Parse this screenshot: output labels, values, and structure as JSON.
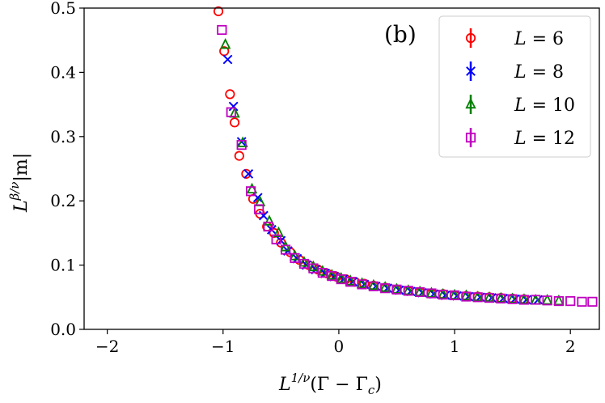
{
  "chart_data": {
    "type": "scatter",
    "panel_label": "(b)",
    "xlabel": "L^{1/ν}(Γ − Γ_c)",
    "ylabel": "L^{β/ν}|m|",
    "xlim": [
      -2.2,
      2.25
    ],
    "ylim": [
      0.0,
      0.5
    ],
    "xticks": [
      -2,
      -1,
      0,
      1,
      2
    ],
    "xtick_labels": [
      "−2",
      "−1",
      "0",
      "1",
      "2"
    ],
    "yticks": [
      0.0,
      0.1,
      0.2,
      0.3,
      0.4,
      0.5
    ],
    "ytick_labels": [
      "0.0",
      "0.1",
      "0.2",
      "0.3",
      "0.4",
      "0.5"
    ],
    "legend_position": "top-right",
    "series": [
      {
        "name": "L = 6",
        "L_value": "6",
        "marker": "circle",
        "color": "#ff0000",
        "x": [
          -1.04,
          -0.99,
          -0.94,
          -0.9,
          -0.86,
          -0.8,
          -0.74,
          -0.68,
          -0.62,
          -0.56,
          -0.5,
          -0.42,
          -0.34,
          -0.26,
          -0.18,
          -0.1,
          -0.02,
          0.06,
          0.14,
          0.22,
          0.3,
          0.4,
          0.5,
          0.6,
          0.7,
          0.8,
          0.9,
          1.0,
          1.1,
          1.2,
          1.3,
          1.4,
          1.5,
          1.6
        ],
        "y": [
          0.495,
          0.433,
          0.366,
          0.322,
          0.27,
          0.242,
          0.203,
          0.18,
          0.16,
          0.15,
          0.135,
          0.12,
          0.108,
          0.1,
          0.093,
          0.087,
          0.082,
          0.078,
          0.074,
          0.071,
          0.068,
          0.065,
          0.062,
          0.06,
          0.058,
          0.056,
          0.055,
          0.053,
          0.052,
          0.051,
          0.05,
          0.049,
          0.048,
          0.047
        ]
      },
      {
        "name": "L = 8",
        "L_value": "8",
        "marker": "x",
        "color": "#0000ff",
        "x": [
          -0.96,
          -0.91,
          -0.84,
          -0.78,
          -0.7,
          -0.65,
          -0.58,
          -0.5,
          -0.44,
          -0.36,
          -0.28,
          -0.2,
          -0.12,
          -0.04,
          0.04,
          0.12,
          0.22,
          0.32,
          0.42,
          0.52,
          0.62,
          0.72,
          0.82,
          0.92,
          1.02,
          1.12,
          1.22,
          1.32,
          1.42,
          1.52,
          1.62,
          1.72
        ],
        "y": [
          0.42,
          0.347,
          0.292,
          0.242,
          0.205,
          0.177,
          0.155,
          0.138,
          0.122,
          0.11,
          0.1,
          0.093,
          0.087,
          0.082,
          0.078,
          0.074,
          0.07,
          0.067,
          0.064,
          0.061,
          0.059,
          0.057,
          0.055,
          0.053,
          0.052,
          0.051,
          0.05,
          0.049,
          0.048,
          0.047,
          0.046,
          0.046
        ]
      },
      {
        "name": "L = 10",
        "L_value": "10",
        "marker": "triangle",
        "color": "#008000",
        "x": [
          -0.98,
          -0.9,
          -0.83,
          -0.75,
          -0.68,
          -0.6,
          -0.52,
          -0.46,
          -0.38,
          -0.3,
          -0.22,
          -0.14,
          -0.06,
          0.02,
          0.1,
          0.2,
          0.3,
          0.4,
          0.5,
          0.6,
          0.7,
          0.8,
          0.9,
          1.0,
          1.1,
          1.2,
          1.3,
          1.4,
          1.5,
          1.6,
          1.7,
          1.8,
          1.9
        ],
        "y": [
          0.443,
          0.336,
          0.29,
          0.218,
          0.198,
          0.168,
          0.15,
          0.128,
          0.114,
          0.104,
          0.097,
          0.09,
          0.084,
          0.079,
          0.075,
          0.071,
          0.068,
          0.065,
          0.062,
          0.06,
          0.058,
          0.056,
          0.054,
          0.053,
          0.052,
          0.05,
          0.049,
          0.048,
          0.047,
          0.046,
          0.045,
          0.045,
          0.044
        ]
      },
      {
        "name": "L = 12",
        "L_value": "12",
        "marker": "square",
        "color": "#bf00bf",
        "x": [
          -1.01,
          -0.93,
          -0.84,
          -0.76,
          -0.69,
          -0.61,
          -0.54,
          -0.46,
          -0.38,
          -0.3,
          -0.22,
          -0.14,
          -0.06,
          0.02,
          0.1,
          0.2,
          0.3,
          0.4,
          0.5,
          0.6,
          0.7,
          0.8,
          0.9,
          1.0,
          1.1,
          1.2,
          1.3,
          1.4,
          1.5,
          1.6,
          1.7,
          1.8,
          1.9,
          2.0,
          2.1,
          2.19
        ],
        "y": [
          0.466,
          0.338,
          0.287,
          0.215,
          0.187,
          0.16,
          0.14,
          0.124,
          0.111,
          0.102,
          0.095,
          0.088,
          0.083,
          0.078,
          0.074,
          0.07,
          0.067,
          0.064,
          0.062,
          0.06,
          0.058,
          0.056,
          0.054,
          0.053,
          0.051,
          0.05,
          0.049,
          0.048,
          0.047,
          0.046,
          0.046,
          0.045,
          0.044,
          0.044,
          0.043,
          0.043
        ]
      }
    ]
  }
}
